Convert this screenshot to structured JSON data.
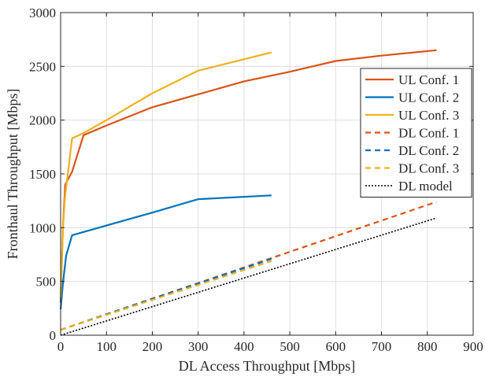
{
  "chart_data": {
    "type": "line",
    "title": "",
    "xlabel": "DL Access Throughput [Mbps]",
    "ylabel": "Fronthaul Throughput [Mbps]",
    "xlim": [
      0,
      900
    ],
    "ylim": [
      0,
      3000
    ],
    "xticks": [
      0,
      100,
      200,
      300,
      400,
      500,
      600,
      700,
      800,
      900
    ],
    "yticks": [
      0,
      500,
      1000,
      1500,
      2000,
      2500,
      3000
    ],
    "grid": true,
    "legend_position": "right",
    "series": [
      {
        "name": "UL Conf. 1",
        "color": "#D95319",
        "style": "solid",
        "x": [
          0,
          5,
          10,
          25,
          50,
          100,
          200,
          300,
          400,
          500,
          600,
          700,
          820
        ],
        "y": [
          300,
          1000,
          1400,
          1520,
          1860,
          1950,
          2120,
          2240,
          2360,
          2450,
          2550,
          2600,
          2650
        ]
      },
      {
        "name": "UL Conf. 2",
        "color": "#0072BD",
        "style": "solid",
        "x": [
          0,
          5,
          12,
          25,
          100,
          200,
          300,
          460
        ],
        "y": [
          240,
          480,
          740,
          930,
          1020,
          1140,
          1265,
          1300
        ]
      },
      {
        "name": "UL Conf. 3",
        "color": "#EDB120",
        "style": "solid",
        "x": [
          0,
          5,
          10,
          25,
          50,
          100,
          200,
          300,
          460
        ],
        "y": [
          350,
          1000,
          1300,
          1830,
          1880,
          2000,
          2250,
          2460,
          2630
        ]
      },
      {
        "name": "DL Conf. 1",
        "color": "#D95319",
        "style": "dashed",
        "x": [
          0,
          820
        ],
        "y": [
          50,
          1240
        ]
      },
      {
        "name": "DL Conf. 2",
        "color": "#0072BD",
        "style": "dashed",
        "x": [
          0,
          460
        ],
        "y": [
          50,
          710
        ]
      },
      {
        "name": "DL Conf. 3",
        "color": "#EDB120",
        "style": "dashed",
        "x": [
          0,
          460
        ],
        "y": [
          50,
          690
        ]
      },
      {
        "name": "DL model",
        "color": "#000000",
        "style": "dotted",
        "x": [
          0,
          820
        ],
        "y": [
          0,
          1090
        ]
      }
    ]
  }
}
